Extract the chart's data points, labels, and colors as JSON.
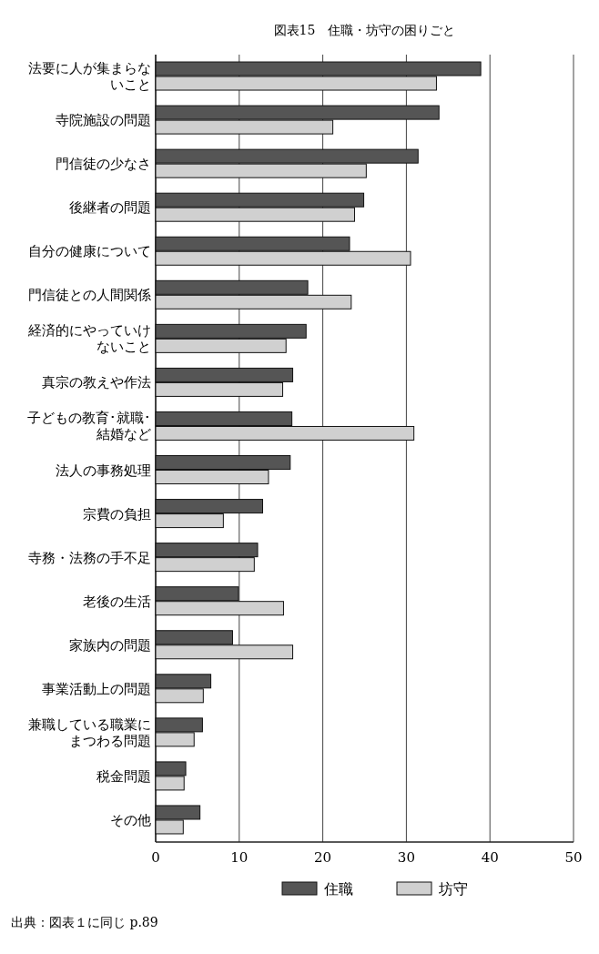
{
  "chart_data": {
    "type": "bar",
    "orientation": "horizontal",
    "title": "図表15　住職・坊守の困りごと",
    "categories": [
      "法要に人が集まらないこと",
      "寺院施設の問題",
      "門信徒の少なさ",
      "後継者の問題",
      "自分の健康について",
      "門信徒との人間関係",
      "経済的にやっていけないこと",
      "真宗の教えや作法",
      "子どもの教育･就職･結婚など",
      "法人の事務処理",
      "宗費の負担",
      "寺務・法務の手不足",
      "老後の生活",
      "家族内の問題",
      "事業活動上の問題",
      "兼職している職業にまつわる問題",
      "税金問題",
      "その他"
    ],
    "series": [
      {
        "name": "住職",
        "color": "#555555",
        "values": [
          38.9,
          33.9,
          31.4,
          24.9,
          23.2,
          18.2,
          18.0,
          16.4,
          16.3,
          16.1,
          12.8,
          12.2,
          9.9,
          9.2,
          6.6,
          5.6,
          3.6,
          5.3
        ]
      },
      {
        "name": "坊守",
        "color": "#d0d0d0",
        "values": [
          33.6,
          21.2,
          25.2,
          23.8,
          30.5,
          23.4,
          15.6,
          15.2,
          30.9,
          13.5,
          8.1,
          11.8,
          15.3,
          16.4,
          5.7,
          4.6,
          3.4,
          3.3
        ]
      }
    ],
    "xlim": [
      0,
      50
    ],
    "xticks": [
      0,
      10,
      20,
      30,
      40,
      50
    ],
    "grid": "x",
    "legend": "bottom",
    "annotations": [
      "出典：図表１に同じ p.89"
    ]
  }
}
